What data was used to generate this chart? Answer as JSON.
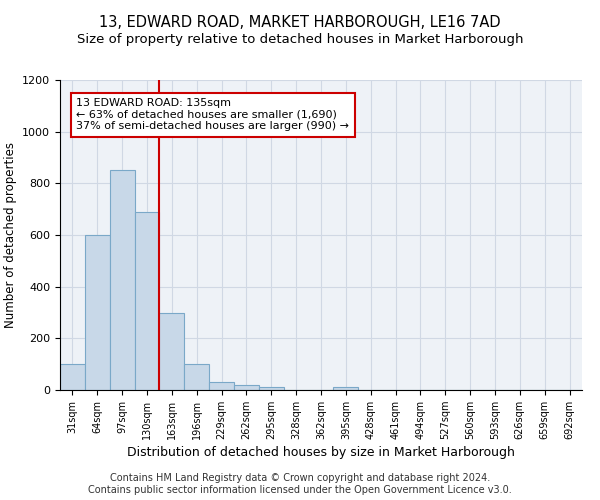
{
  "title": "13, EDWARD ROAD, MARKET HARBOROUGH, LE16 7AD",
  "subtitle": "Size of property relative to detached houses in Market Harborough",
  "xlabel": "Distribution of detached houses by size in Market Harborough",
  "ylabel": "Number of detached properties",
  "bin_labels": [
    "31sqm",
    "64sqm",
    "97sqm",
    "130sqm",
    "163sqm",
    "196sqm",
    "229sqm",
    "262sqm",
    "295sqm",
    "328sqm",
    "362sqm",
    "395sqm",
    "428sqm",
    "461sqm",
    "494sqm",
    "527sqm",
    "560sqm",
    "593sqm",
    "626sqm",
    "659sqm",
    "692sqm"
  ],
  "bar_values": [
    100,
    600,
    850,
    690,
    300,
    100,
    30,
    20,
    10,
    0,
    0,
    10,
    0,
    0,
    0,
    0,
    0,
    0,
    0,
    0,
    0
  ],
  "bar_color": "#c8d8e8",
  "bar_edge_color": "#7aa8c8",
  "bar_edge_width": 0.8,
  "red_line_x": 3.5,
  "red_line_color": "#cc0000",
  "annotation_line1": "13 EDWARD ROAD: 135sqm",
  "annotation_line2": "← 63% of detached houses are smaller (1,690)",
  "annotation_line3": "37% of semi-detached houses are larger (990) →",
  "annotation_fontsize": 8,
  "ylim": [
    0,
    1200
  ],
  "yticks": [
    0,
    200,
    400,
    600,
    800,
    1000,
    1200
  ],
  "title_fontsize": 10.5,
  "subtitle_fontsize": 9.5,
  "xlabel_fontsize": 9,
  "ylabel_fontsize": 8.5,
  "footer_line1": "Contains HM Land Registry data © Crown copyright and database right 2024.",
  "footer_line2": "Contains public sector information licensed under the Open Government Licence v3.0.",
  "footer_fontsize": 7,
  "background_color": "#ffffff",
  "axes_bg_color": "#eef2f7",
  "grid_color": "#d0d8e4"
}
